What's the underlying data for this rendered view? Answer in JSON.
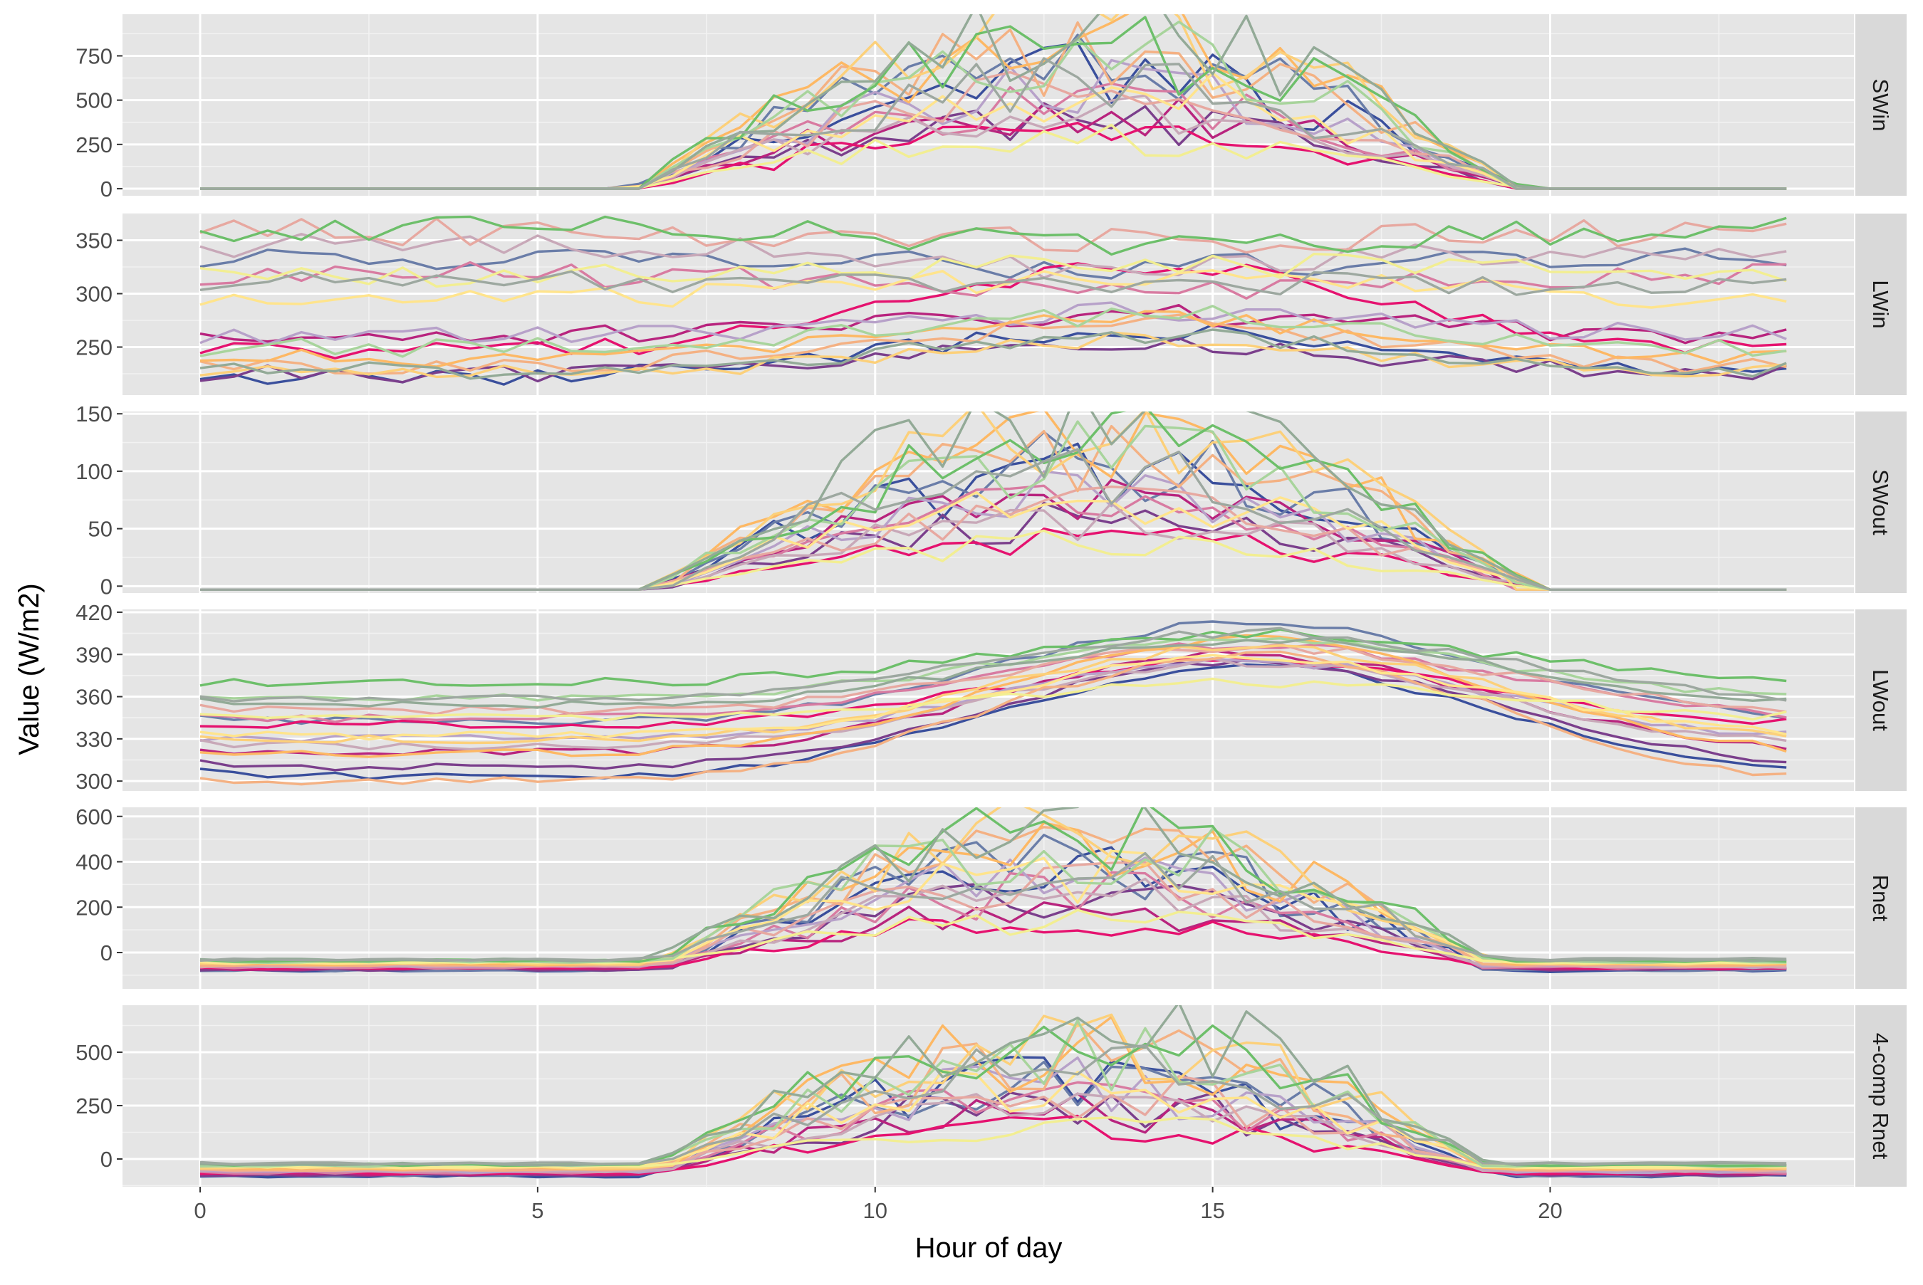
{
  "chart_data": {
    "type": "line",
    "xlabel": "Hour of day",
    "ylabel": "Value (W/m2)",
    "xlim": [
      -1.15,
      24.5
    ],
    "x_ticks": [
      0,
      5,
      10,
      15,
      20
    ],
    "x_tick_labels": [
      "0",
      "5",
      "10",
      "15",
      "20"
    ],
    "x_range": [
      0,
      23.5
    ],
    "x_step": 0.5,
    "grid": true,
    "legend": "none",
    "palette": [
      "#3A4F9C",
      "#6A7DA8",
      "#7B3F8C",
      "#B8247E",
      "#E5126F",
      "#D87BA1",
      "#B7A1C9",
      "#C8A8B8",
      "#E7A8A0",
      "#F4B183",
      "#FDB864",
      "#FCD07A",
      "#FFE48C",
      "#F2EE92",
      "#A8D49C",
      "#6DBF6A",
      "#93AA97",
      "#9DA8A0"
    ],
    "panels": [
      {
        "strip": "SWin",
        "ylim": [
          -40,
          985
        ],
        "y_ticks": [
          0,
          250,
          500,
          750
        ],
        "y_tick_labels": [
          "0",
          "250",
          "500",
          "750"
        ],
        "baseline": 0,
        "night": [
          0,
          0
        ],
        "rise": 6.5,
        "set": 19.5,
        "peaks": [
          640,
          700,
          380,
          420,
          300,
          480,
          560,
          450,
          520,
          760,
          830,
          890,
          560,
          280,
          760,
          820,
          900,
          580
        ],
        "jitter": 0.32,
        "shift": 0
      },
      {
        "strip": "LWin",
        "ylim": [
          205,
          375
        ],
        "y_ticks": [
          250,
          300,
          350
        ],
        "y_tick_labels": [
          "250",
          "300",
          "350"
        ],
        "bases": [
          222,
          335,
          225,
          262,
          246,
          318,
          262,
          345,
          358,
          232,
          240,
          226,
          296,
          318,
          250,
          362,
          228,
          310
        ],
        "amps": [
          45,
          -10,
          25,
          18,
          80,
          -15,
          20,
          -20,
          -10,
          40,
          35,
          30,
          20,
          10,
          30,
          -15,
          35,
          0
        ],
        "jitter": 0.06,
        "shift": 0
      },
      {
        "strip": "SWout",
        "ylim": [
          -6,
          152
        ],
        "y_ticks": [
          0,
          50,
          100,
          150
        ],
        "y_tick_labels": [
          "0",
          "50",
          "100",
          "150"
        ],
        "baseline": -3,
        "night": [
          0,
          0
        ],
        "rise": 6.6,
        "set": 19.6,
        "peaks": [
          100,
          110,
          60,
          80,
          45,
          75,
          85,
          60,
          70,
          120,
          130,
          135,
          80,
          40,
          115,
          125,
          140,
          100
        ],
        "jitter": 0.3,
        "shift": 0.15
      },
      {
        "strip": "LWout",
        "ylim": [
          293,
          422
        ],
        "y_ticks": [
          300,
          330,
          360,
          390,
          420
        ],
        "y_tick_labels": [
          "300",
          "330",
          "360",
          "390",
          "420"
        ],
        "bases": [
          304,
          342,
          310,
          320,
          340,
          345,
          330,
          325,
          350,
          300,
          320,
          330,
          332,
          345,
          360,
          370,
          355,
          358
        ],
        "amps": [
          78,
          70,
          75,
          70,
          45,
          52,
          55,
          60,
          45,
          90,
          80,
          65,
          55,
          25,
          40,
          35,
          45,
          48
        ],
        "jitter": 0.015,
        "shift": 1.5
      },
      {
        "strip": "Rnet",
        "ylim": [
          -160,
          640
        ],
        "y_ticks": [
          0,
          200,
          400,
          600
        ],
        "y_tick_labels": [
          "0",
          "200",
          "400",
          "600"
        ],
        "night": [
          -80,
          -30
        ],
        "rise": 6.8,
        "set": 19.1,
        "peaks": [
          420,
          470,
          300,
          260,
          200,
          330,
          380,
          300,
          350,
          480,
          520,
          560,
          380,
          180,
          500,
          540,
          580,
          400
        ],
        "jitter": 0.35,
        "shift": 0
      },
      {
        "strip": "4-comp Rnet",
        "ylim": [
          -130,
          720
        ],
        "y_ticks": [
          0,
          250,
          500
        ],
        "y_tick_labels": [
          "0",
          "250",
          "500"
        ],
        "night": [
          -80,
          -20
        ],
        "rise": 6.8,
        "set": 19.1,
        "peaks": [
          440,
          500,
          320,
          280,
          210,
          350,
          400,
          320,
          370,
          520,
          560,
          620,
          400,
          190,
          540,
          580,
          640,
          420
        ],
        "jitter": 0.35,
        "shift": 0
      }
    ]
  }
}
